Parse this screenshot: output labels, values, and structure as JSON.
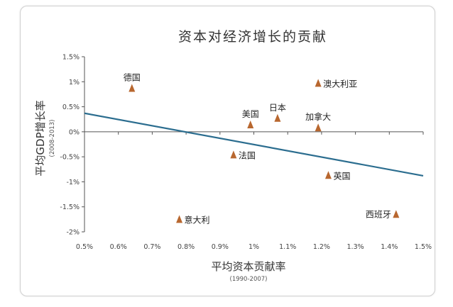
{
  "chart_data": {
    "type": "scatter",
    "title": "资本对经济增长的贡献",
    "xlabel": "平均资本贡献率",
    "xlabel_sub": "(1990-2007)",
    "ylabel": "平均GDP增长率",
    "ylabel_sub": "(2008-2013)",
    "xlim": [
      0.5,
      1.5
    ],
    "ylim": [
      -2,
      1.5
    ],
    "x_ticks": [
      {
        "v": 0.5,
        "label": "0.5%"
      },
      {
        "v": 0.6,
        "label": "0.6%"
      },
      {
        "v": 0.7,
        "label": "0.7%"
      },
      {
        "v": 0.8,
        "label": "0.8%"
      },
      {
        "v": 0.9,
        "label": "0.9%"
      },
      {
        "v": 1.0,
        "label": "1%"
      },
      {
        "v": 1.1,
        "label": "1.1%"
      },
      {
        "v": 1.2,
        "label": "1.2%"
      },
      {
        "v": 1.3,
        "label": "1.3%"
      },
      {
        "v": 1.4,
        "label": "1.4%"
      },
      {
        "v": 1.5,
        "label": "1.5%"
      }
    ],
    "y_ticks": [
      {
        "v": 1.5,
        "label": "1.5%"
      },
      {
        "v": 1.0,
        "label": "1%"
      },
      {
        "v": 0.5,
        "label": "0.5%"
      },
      {
        "v": 0.0,
        "label": "0%"
      },
      {
        "v": -0.5,
        "label": "-0.5%"
      },
      {
        "v": -1.0,
        "label": "-1%"
      },
      {
        "v": -1.5,
        "label": "-1.5%"
      },
      {
        "v": -2.0,
        "label": "-2%"
      }
    ],
    "points": [
      {
        "name": "德国",
        "x": 0.64,
        "y": 0.87,
        "label_pos": "above"
      },
      {
        "name": "澳大利亚",
        "x": 1.19,
        "y": 0.97,
        "label_pos": "right"
      },
      {
        "name": "美国",
        "x": 0.99,
        "y": 0.14,
        "label_pos": "above"
      },
      {
        "name": "日本",
        "x": 1.07,
        "y": 0.27,
        "label_pos": "above"
      },
      {
        "name": "加拿大",
        "x": 1.19,
        "y": 0.08,
        "label_pos": "above"
      },
      {
        "name": "法国",
        "x": 0.94,
        "y": -0.46,
        "label_pos": "right"
      },
      {
        "name": "英国",
        "x": 1.22,
        "y": -0.87,
        "label_pos": "right"
      },
      {
        "name": "西班牙",
        "x": 1.42,
        "y": -1.65,
        "label_pos": "left"
      },
      {
        "name": "意大利",
        "x": 0.78,
        "y": -1.75,
        "label_pos": "right"
      }
    ],
    "trendline": {
      "x1": 0.5,
      "y1": 0.37,
      "x2": 1.5,
      "y2": -0.88
    },
    "colors": {
      "marker": "#b8672f",
      "trendline": "#2b6d8f",
      "axis": "#555555"
    }
  }
}
